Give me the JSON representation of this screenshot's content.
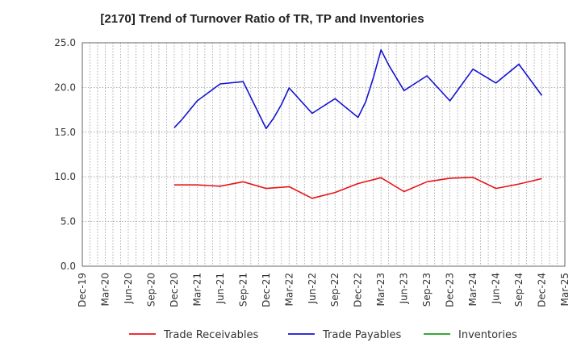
{
  "chart_data": {
    "type": "line",
    "title": "[2170]  Trend of Turnover Ratio of TR, TP and Inventories",
    "xlabel": "",
    "ylabel": "",
    "ylim": [
      0,
      25
    ],
    "yticks": [
      "0.0",
      "5.0",
      "10.0",
      "15.0",
      "20.0",
      "25.0"
    ],
    "x_tick_labels": [
      "Dec-19",
      "Mar-20",
      "Jun-20",
      "Sep-20",
      "Dec-20",
      "Mar-21",
      "Jun-21",
      "Sep-21",
      "Dec-21",
      "Mar-22",
      "Jun-22",
      "Sep-22",
      "Dec-22",
      "Mar-23",
      "Jun-23",
      "Sep-23",
      "Dec-23",
      "Mar-24",
      "Jun-24",
      "Sep-24",
      "Dec-24",
      "Mar-25"
    ],
    "grid": true,
    "legend_position": "bottom",
    "series": [
      {
        "name": "Trade Receivables",
        "color": "#e8141b",
        "points": [
          {
            "x": "Dec-20",
            "y": 9.1
          },
          {
            "x": "Mar-21",
            "y": 9.1
          },
          {
            "x": "Jun-21",
            "y": 8.95
          },
          {
            "x": "Sep-21",
            "y": 9.45
          },
          {
            "x": "Dec-21",
            "y": 8.7
          },
          {
            "x": "Mar-22",
            "y": 8.9
          },
          {
            "x": "Jun-22",
            "y": 7.6
          },
          {
            "x": "Sep-22",
            "y": 8.25
          },
          {
            "x": "Dec-22",
            "y": 9.25
          },
          {
            "x": "Mar-23",
            "y": 9.9
          },
          {
            "x": "Jun-23",
            "y": 8.35
          },
          {
            "x": "Sep-23",
            "y": 9.45
          },
          {
            "x": "Dec-23",
            "y": 9.85
          },
          {
            "x": "Mar-24",
            "y": 9.95
          },
          {
            "x": "Jun-24",
            "y": 8.7
          },
          {
            "x": "Sep-24",
            "y": 9.2
          },
          {
            "x": "Dec-24",
            "y": 9.8
          }
        ]
      },
      {
        "name": "Trade Payables",
        "color": "#1414d2",
        "points": [
          {
            "x": "Dec-20",
            "y": 15.5
          },
          {
            "x": "Jan-21",
            "y": 16.4
          },
          {
            "x": "Mar-21",
            "y": 18.5
          },
          {
            "x": "Jun-21",
            "y": 20.4
          },
          {
            "x": "Sep-21",
            "y": 20.65
          },
          {
            "x": "Dec-21",
            "y": 15.4
          },
          {
            "x": "Jan-22",
            "y": 16.6
          },
          {
            "x": "Feb-22",
            "y": 18.1
          },
          {
            "x": "Mar-22",
            "y": 19.95
          },
          {
            "x": "Jun-22",
            "y": 17.1
          },
          {
            "x": "Sep-22",
            "y": 18.75
          },
          {
            "x": "Dec-22",
            "y": 16.65
          },
          {
            "x": "Jan-23",
            "y": 18.4
          },
          {
            "x": "Feb-23",
            "y": 21.1
          },
          {
            "x": "Mar-23",
            "y": 24.2
          },
          {
            "x": "Apr-23",
            "y": 22.5
          },
          {
            "x": "Jun-23",
            "y": 19.65
          },
          {
            "x": "Sep-23",
            "y": 21.3
          },
          {
            "x": "Dec-23",
            "y": 18.5
          },
          {
            "x": "Mar-24",
            "y": 22.05
          },
          {
            "x": "Jun-24",
            "y": 20.5
          },
          {
            "x": "Sep-24",
            "y": 22.6
          },
          {
            "x": "Dec-24",
            "y": 19.1
          }
        ]
      },
      {
        "name": "Inventories",
        "color": "#1a9e1a",
        "points": []
      }
    ]
  }
}
